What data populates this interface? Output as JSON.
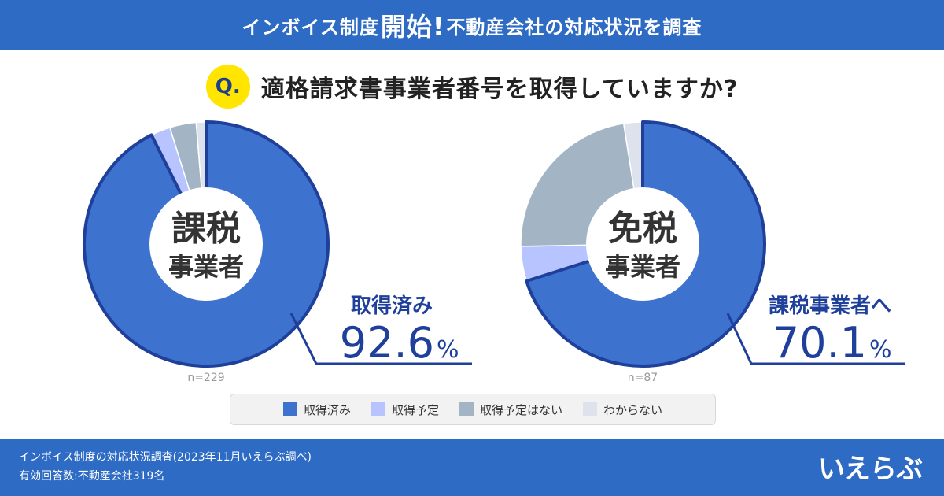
{
  "header": {
    "part1": "インボイス制度",
    "big": "開始!",
    "part2": "不動産会社の対応状況を調査"
  },
  "question": {
    "badge": "Q.",
    "text": "適格請求書事業者番号を取得していますか?"
  },
  "chart_data": [
    {
      "type": "pie",
      "center_label_line1": "課税",
      "center_label_line2": "事業者",
      "callout_label": "取得済み",
      "callout_value": "92.6",
      "callout_unit": "%",
      "n_label": "n=229",
      "categories": [
        "取得済み",
        "取得予定",
        "取得予定はない",
        "わからない"
      ],
      "values": [
        92.6,
        2.6,
        3.5,
        1.3
      ]
    },
    {
      "type": "pie",
      "center_label_line1": "免税",
      "center_label_line2": "事業者",
      "callout_label": "課税事業者へ",
      "callout_value": "70.1",
      "callout_unit": "%",
      "n_label": "n=87",
      "categories": [
        "取得済み",
        "取得予定",
        "取得予定はない",
        "わからない"
      ],
      "values": [
        70.1,
        4.6,
        22.8,
        2.5
      ]
    }
  ],
  "legend": {
    "items": [
      {
        "label": "取得済み",
        "color": "#3d72cf"
      },
      {
        "label": "取得予定",
        "color": "#b8c4ff"
      },
      {
        "label": "取得予定はない",
        "color": "#a3b5c5"
      },
      {
        "label": "わからない",
        "color": "#dde2ec"
      }
    ]
  },
  "colors": {
    "header_bg": "#2d6bc4",
    "slice_outline": "#1e3f9a",
    "question_badge": "#ffe500"
  },
  "footer": {
    "line1": "インボイス制度の対応状況調査(2023年11月いえらぶ調べ)",
    "line2": "有効回答数:不動産会社319名",
    "logo": "いえらぶ"
  }
}
